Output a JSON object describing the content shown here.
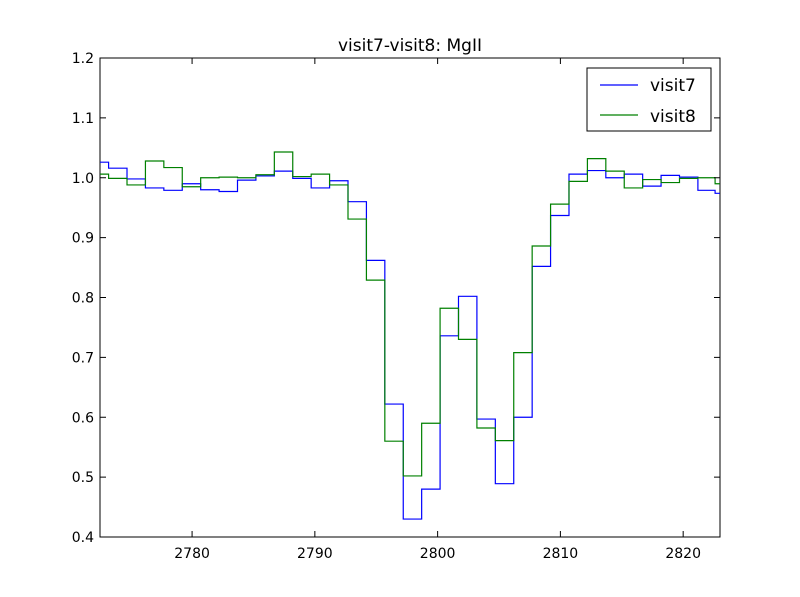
{
  "chart_data": {
    "type": "line",
    "step": true,
    "title": "visit7-visit8: MgII",
    "xlabel": "",
    "ylabel": "",
    "xlim": [
      2772.5,
      2823
    ],
    "ylim": [
      0.4,
      1.2
    ],
    "xticks": [
      2780,
      2790,
      2800,
      2810,
      2820
    ],
    "yticks": [
      0.4,
      0.5,
      0.6,
      0.7,
      0.8,
      0.9,
      1.0,
      1.1,
      1.2
    ],
    "grid": false,
    "legend_position": "top-right",
    "edges": [
      2772.5,
      2773.2,
      2774.7,
      2776.2,
      2777.7,
      2779.2,
      2780.7,
      2782.2,
      2783.7,
      2785.2,
      2786.7,
      2788.2,
      2789.7,
      2791.2,
      2792.7,
      2794.2,
      2795.7,
      2797.2,
      2798.7,
      2800.2,
      2801.7,
      2803.2,
      2804.7,
      2806.2,
      2807.7,
      2809.2,
      2810.7,
      2812.2,
      2813.7,
      2815.2,
      2816.7,
      2818.2,
      2819.7,
      2821.2,
      2822.6,
      2823.0
    ],
    "series": [
      {
        "name": "visit7",
        "color": "#0000ff",
        "values": [
          1.026,
          1.016,
          0.998,
          0.983,
          0.979,
          0.99,
          0.98,
          0.977,
          0.996,
          1.003,
          1.011,
          0.999,
          0.983,
          0.995,
          0.96,
          0.862,
          0.622,
          0.43,
          0.48,
          0.736,
          0.802,
          0.597,
          0.489,
          0.6,
          0.852,
          0.937,
          1.006,
          1.012,
          1.0,
          1.006,
          0.986,
          1.004,
          1.001,
          0.979,
          0.974
        ]
      },
      {
        "name": "visit8",
        "color": "#008000",
        "values": [
          1.006,
          0.999,
          0.988,
          1.028,
          1.017,
          0.985,
          1.0,
          1.001,
          1.0,
          1.005,
          1.043,
          1.002,
          1.006,
          0.988,
          0.931,
          0.829,
          0.56,
          0.502,
          0.59,
          0.782,
          0.73,
          0.582,
          0.561,
          0.708,
          0.886,
          0.956,
          0.994,
          1.032,
          1.011,
          0.983,
          0.997,
          0.992,
          0.999,
          1.0,
          0.99
        ]
      }
    ]
  }
}
